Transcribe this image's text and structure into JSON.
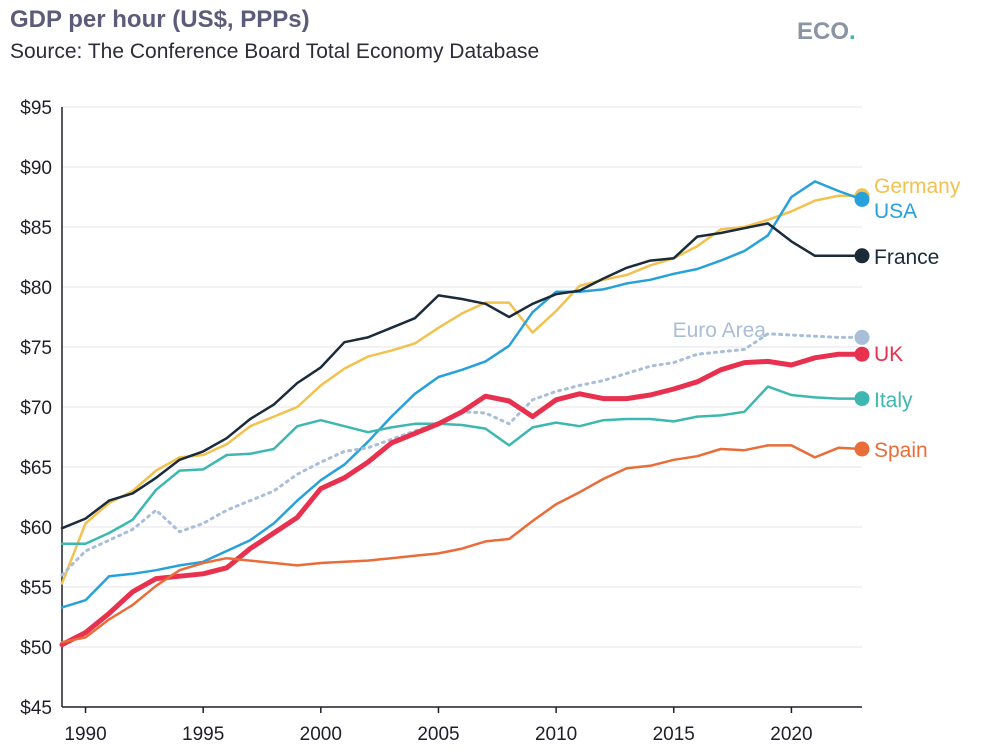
{
  "title": "GDP per hour (US$, PPPs)",
  "subtitle": "Source: The Conference Board Total Economy Database",
  "logo": {
    "text": "ECO",
    "dot": ".",
    "text_color": "#8a94a3",
    "dot_color": "#3cb8b0"
  },
  "chart_data": {
    "type": "line",
    "title": "GDP per hour (US$, PPPs)",
    "xlim": [
      1989,
      2023
    ],
    "ylim": [
      45,
      95
    ],
    "x_ticks": [
      1990,
      1995,
      2000,
      2005,
      2010,
      2015,
      2020
    ],
    "x_tick_labels": [
      "1990",
      "1995",
      "2000",
      "2005",
      "2010",
      "2015",
      "2020"
    ],
    "y_ticks": [
      45,
      50,
      55,
      60,
      65,
      70,
      75,
      80,
      85,
      90,
      95
    ],
    "y_tick_labels": [
      "$45",
      "$50",
      "$55",
      "$60",
      "$65",
      "$70",
      "$75",
      "$80",
      "$85",
      "$90",
      "$95"
    ],
    "grid": "horizontal",
    "legend": "end-of-line labels",
    "x": [
      1989,
      1990,
      1991,
      1992,
      1993,
      1994,
      1995,
      1996,
      1997,
      1998,
      1999,
      2000,
      2001,
      2002,
      2003,
      2004,
      2005,
      2006,
      2007,
      2008,
      2009,
      2010,
      2011,
      2012,
      2013,
      2014,
      2015,
      2016,
      2017,
      2018,
      2019,
      2020,
      2021,
      2022,
      2023
    ],
    "series": [
      {
        "name": "Germany",
        "color": "#f2c14e",
        "style": "solid",
        "width": 2.5,
        "values": [
          55.3,
          60.3,
          62.0,
          63.0,
          64.7,
          65.8,
          66.0,
          66.9,
          68.4,
          69.2,
          70.0,
          71.8,
          73.2,
          74.2,
          74.7,
          75.3,
          76.6,
          77.8,
          78.7,
          78.7,
          76.2,
          78.0,
          80.1,
          80.6,
          81.0,
          81.8,
          82.4,
          83.4,
          84.8,
          85.0,
          85.6,
          86.3,
          87.2,
          87.6,
          87.6
        ]
      },
      {
        "name": "USA",
        "color": "#27a1dc",
        "style": "solid",
        "width": 2.5,
        "values": [
          53.3,
          53.9,
          55.9,
          56.1,
          56.4,
          56.8,
          57.1,
          58.0,
          58.9,
          60.3,
          62.2,
          63.9,
          65.2,
          67.1,
          69.2,
          71.1,
          72.5,
          73.1,
          73.8,
          75.1,
          77.9,
          79.6,
          79.6,
          79.8,
          80.3,
          80.6,
          81.1,
          81.5,
          82.2,
          83.0,
          84.3,
          87.5,
          88.8,
          88.0,
          87.3
        ]
      },
      {
        "name": "France",
        "color": "#1b2b3a",
        "style": "solid",
        "width": 2.5,
        "values": [
          59.9,
          60.7,
          62.2,
          62.8,
          64.1,
          65.6,
          66.3,
          67.4,
          69.0,
          70.2,
          72.0,
          73.3,
          75.4,
          75.8,
          76.6,
          77.4,
          79.3,
          79.0,
          78.6,
          77.5,
          78.6,
          79.4,
          79.7,
          80.7,
          81.6,
          82.2,
          82.4,
          84.2,
          84.5,
          84.9,
          85.3,
          83.8,
          82.6,
          82.6,
          82.6
        ]
      },
      {
        "name": "Euro Area",
        "color": "#a9bed8",
        "style": "dotted",
        "width": 3,
        "values": [
          56.0,
          58.0,
          58.9,
          59.8,
          61.4,
          59.6,
          60.3,
          61.4,
          62.2,
          63.0,
          64.4,
          65.4,
          66.3,
          66.6,
          67.3,
          68.0,
          68.7,
          69.6,
          69.5,
          68.6,
          70.6,
          71.3,
          71.8,
          72.2,
          72.8,
          73.4,
          73.7,
          74.4,
          74.6,
          74.8,
          76.1,
          76.0,
          75.9,
          75.8,
          75.8
        ]
      },
      {
        "name": "Italy",
        "color": "#3cb8b0",
        "style": "solid",
        "width": 2.5,
        "values": [
          58.6,
          58.6,
          59.5,
          60.6,
          63.1,
          64.7,
          64.8,
          66.0,
          66.1,
          66.5,
          68.4,
          68.9,
          68.4,
          67.9,
          68.3,
          68.6,
          68.6,
          68.5,
          68.2,
          66.8,
          68.3,
          68.7,
          68.4,
          68.9,
          69.0,
          69.0,
          68.8,
          69.2,
          69.3,
          69.6,
          71.7,
          71.0,
          70.8,
          70.7,
          70.7
        ]
      },
      {
        "name": "UK",
        "color": "#e8304f",
        "style": "solid",
        "width": 5,
        "values": [
          50.2,
          51.2,
          52.8,
          54.6,
          55.7,
          55.9,
          56.1,
          56.6,
          58.2,
          59.5,
          60.8,
          63.2,
          64.1,
          65.4,
          67.0,
          67.8,
          68.6,
          69.6,
          70.9,
          70.5,
          69.2,
          70.6,
          71.1,
          70.7,
          70.7,
          71.0,
          71.5,
          72.1,
          73.1,
          73.7,
          73.8,
          73.5,
          74.1,
          74.4,
          74.4
        ]
      },
      {
        "name": "Spain",
        "color": "#ea6c39",
        "style": "solid",
        "width": 2.5,
        "values": [
          50.4,
          50.8,
          52.3,
          53.5,
          55.1,
          56.4,
          57.0,
          57.4,
          57.2,
          57.0,
          56.8,
          57.0,
          57.1,
          57.2,
          57.4,
          57.6,
          57.8,
          58.2,
          58.8,
          59.0,
          60.5,
          61.9,
          62.9,
          64.0,
          64.9,
          65.1,
          65.6,
          65.9,
          66.5,
          66.4,
          66.8,
          66.8,
          65.8,
          66.6,
          66.5
        ]
      }
    ]
  }
}
